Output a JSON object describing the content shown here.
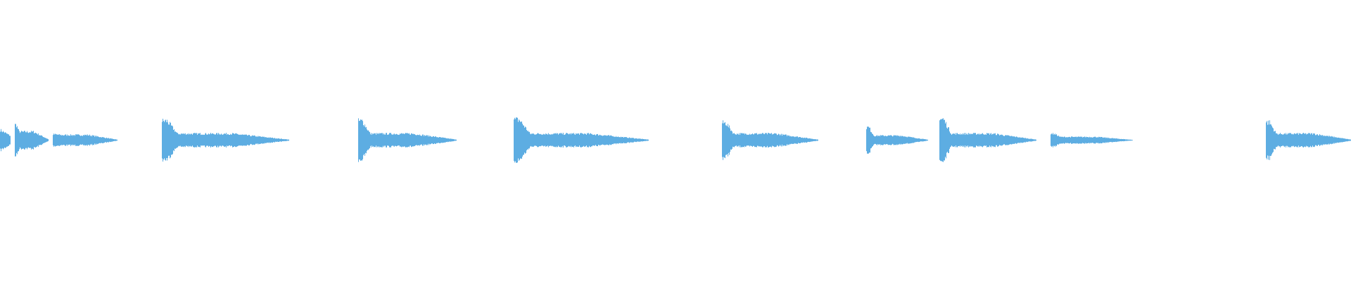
{
  "chart_data": {
    "type": "waveform",
    "color": "#5dade2",
    "background": "#ffffff",
    "grid": false,
    "legend": "none"
  }
}
